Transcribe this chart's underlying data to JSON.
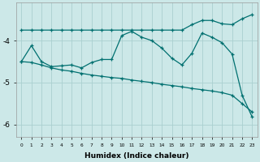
{
  "xlabel": "Humidex (Indice chaleur)",
  "background_color": "#cce8e8",
  "line_color": "#007070",
  "grid_color": "#aad0d0",
  "x_values": [
    0,
    1,
    2,
    3,
    4,
    5,
    6,
    7,
    8,
    9,
    10,
    11,
    12,
    13,
    14,
    15,
    16,
    17,
    18,
    19,
    20,
    21,
    22,
    23
  ],
  "line1_top": [
    -3.75,
    -3.75,
    -3.75,
    -3.75,
    -3.75,
    -3.75,
    -3.75,
    -3.75,
    -3.75,
    -3.75,
    -3.75,
    -3.75,
    -3.75,
    -3.75,
    -3.75,
    -3.75,
    -3.75,
    -3.62,
    -3.52,
    -3.52,
    -3.6,
    -3.62,
    -3.48,
    -3.38
  ],
  "line2_main": [
    -4.5,
    -4.12,
    -4.5,
    -4.62,
    -4.6,
    -4.58,
    -4.65,
    -4.52,
    -4.45,
    -4.45,
    -3.88,
    -3.78,
    -3.92,
    -4.0,
    -4.18,
    -4.42,
    -4.58,
    -4.3,
    -3.82,
    -3.92,
    -4.05,
    -4.32,
    -5.3,
    -5.82
  ],
  "line3_diag": [
    -4.5,
    -4.52,
    -4.58,
    -4.65,
    -4.7,
    -4.73,
    -4.78,
    -4.82,
    -4.85,
    -4.88,
    -4.9,
    -4.94,
    -4.97,
    -5.0,
    -5.04,
    -5.07,
    -5.1,
    -5.14,
    -5.17,
    -5.2,
    -5.24,
    -5.3,
    -5.5,
    -5.7
  ],
  "ylim": [
    -6.3,
    -3.1
  ],
  "yticks": [
    -6,
    -5,
    -4
  ],
  "xlim": [
    -0.5,
    23.5
  ]
}
